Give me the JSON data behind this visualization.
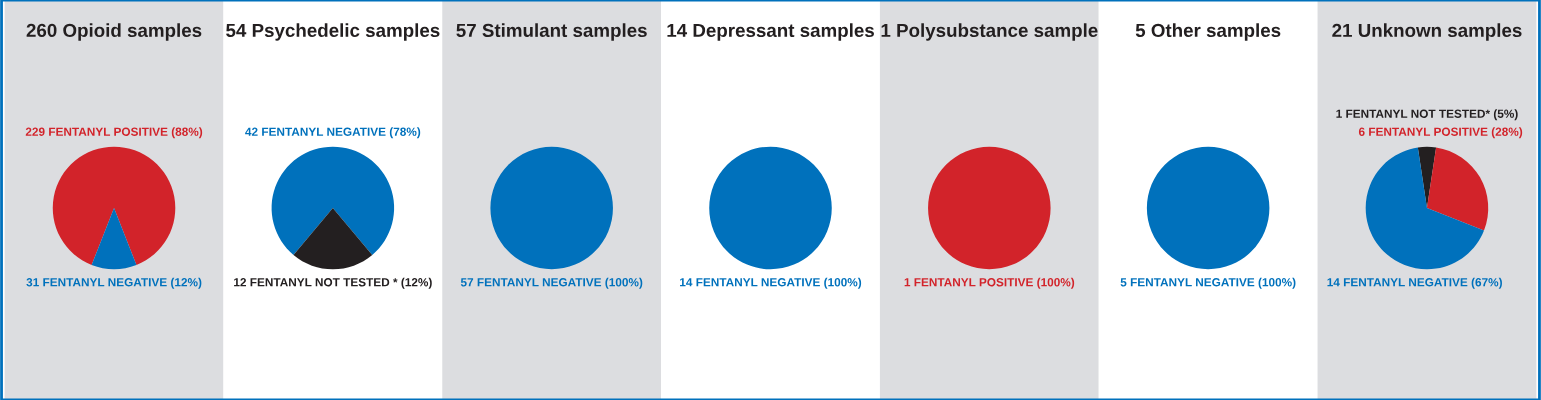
{
  "chart_data": [
    {
      "type": "pie",
      "title": "260 Opioid samples",
      "categories": [
        null,
        null
      ],
      "values": [
        229,
        31
      ],
      "value_labels": [
        "229 FENTANYL POSITIVE (88%)",
        "31 FENTANYL NEGATIVE (12%)"
      ],
      "colors": [
        "#d2232a",
        "#0071bc"
      ]
    },
    {
      "type": "pie",
      "title": "54 Psychedelic samples",
      "categories": [
        null,
        null
      ],
      "values": [
        42,
        12
      ],
      "value_labels": [
        "42 FENTANYL NEGATIVE (78%)",
        "12 FENTANYL NOT TESTED * (12%)"
      ],
      "colors": [
        "#0071bc",
        "#231f20"
      ]
    },
    {
      "type": "pie",
      "title": "57 Stimulant samples",
      "categories": [
        null
      ],
      "values": [
        57
      ],
      "value_labels": [
        "57 FENTANYL NEGATIVE (100%)"
      ],
      "colors": [
        "#0071bc"
      ]
    },
    {
      "type": "pie",
      "title": "14 Depressant samples",
      "categories": [
        null
      ],
      "values": [
        14
      ],
      "value_labels": [
        "14 FENTANYL NEGATIVE (100%)"
      ],
      "colors": [
        "#0071bc"
      ]
    },
    {
      "type": "pie",
      "title": "1 Polysubstance sample",
      "categories": [
        null
      ],
      "values": [
        1
      ],
      "value_labels": [
        "1 FENTANYL POSITIVE (100%)"
      ],
      "colors": [
        "#d2232a"
      ]
    },
    {
      "type": "pie",
      "title": "5 Other samples",
      "categories": [
        null
      ],
      "values": [
        5
      ],
      "value_labels": [
        "5 FENTANYL NEGATIVE (100%)"
      ],
      "colors": [
        "#0071bc"
      ]
    },
    {
      "type": "pie",
      "title": "21 Unknown samples",
      "categories": [
        null,
        null,
        null
      ],
      "values": [
        1,
        6,
        14
      ],
      "value_labels": [
        "1 FENTANYL NOT TESTED* (5%)",
        "6 FENTANYL POSITIVE (28%)",
        "14 FENTANYL NEGATIVE (67%)"
      ],
      "colors": [
        "#231f20",
        "#d2232a",
        "#0071bc"
      ]
    }
  ]
}
